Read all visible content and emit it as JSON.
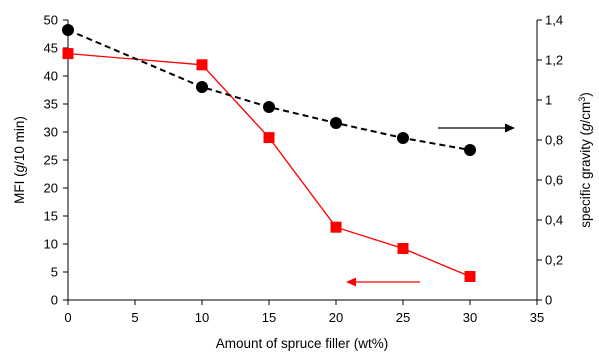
{
  "chart_data": {
    "type": "line",
    "xlabel": "Amount of spruce filler (wt%)",
    "ylabel_left": {
      "text": "MFI (",
      "italic": "g",
      "rest": "/10 min)"
    },
    "ylabel_right": {
      "text": "specific gravity (",
      "italic": "g",
      "mid": "/cm",
      "sup": "3",
      "end": ")"
    },
    "xlim": [
      0,
      35
    ],
    "ylim_left": [
      0,
      50
    ],
    "ylim_right": [
      0,
      1.4
    ],
    "x_ticks": [
      "0",
      "5",
      "10",
      "15",
      "20",
      "25",
      "30",
      "35"
    ],
    "y_ticks_left": [
      "0",
      "5",
      "10",
      "15",
      "20",
      "25",
      "30",
      "35",
      "40",
      "45",
      "50"
    ],
    "y_ticks_right": [
      "0",
      "0,2",
      "0,4",
      "0,6",
      "0,8",
      "1",
      "1,2",
      "1,4"
    ],
    "grid": false,
    "series": [
      {
        "axis": "left",
        "color": "#ff0000",
        "marker": "square",
        "line": "solid",
        "x": [
          0,
          10,
          15,
          20,
          25,
          30
        ],
        "y": [
          44,
          42,
          29,
          13,
          9.2,
          4.2
        ]
      },
      {
        "axis": "right",
        "color": "#000000",
        "marker": "circle",
        "line": "dashed",
        "x": [
          0,
          10,
          15,
          20,
          25,
          30
        ],
        "y": [
          1.35,
          1.065,
          0.965,
          0.885,
          0.81,
          0.75
        ]
      }
    ],
    "annotations": [
      {
        "kind": "arrow",
        "direction": "left",
        "color": "#ff0000",
        "series_index": 0
      },
      {
        "kind": "arrow",
        "direction": "right",
        "color": "#000000",
        "series_index": 1
      }
    ]
  }
}
